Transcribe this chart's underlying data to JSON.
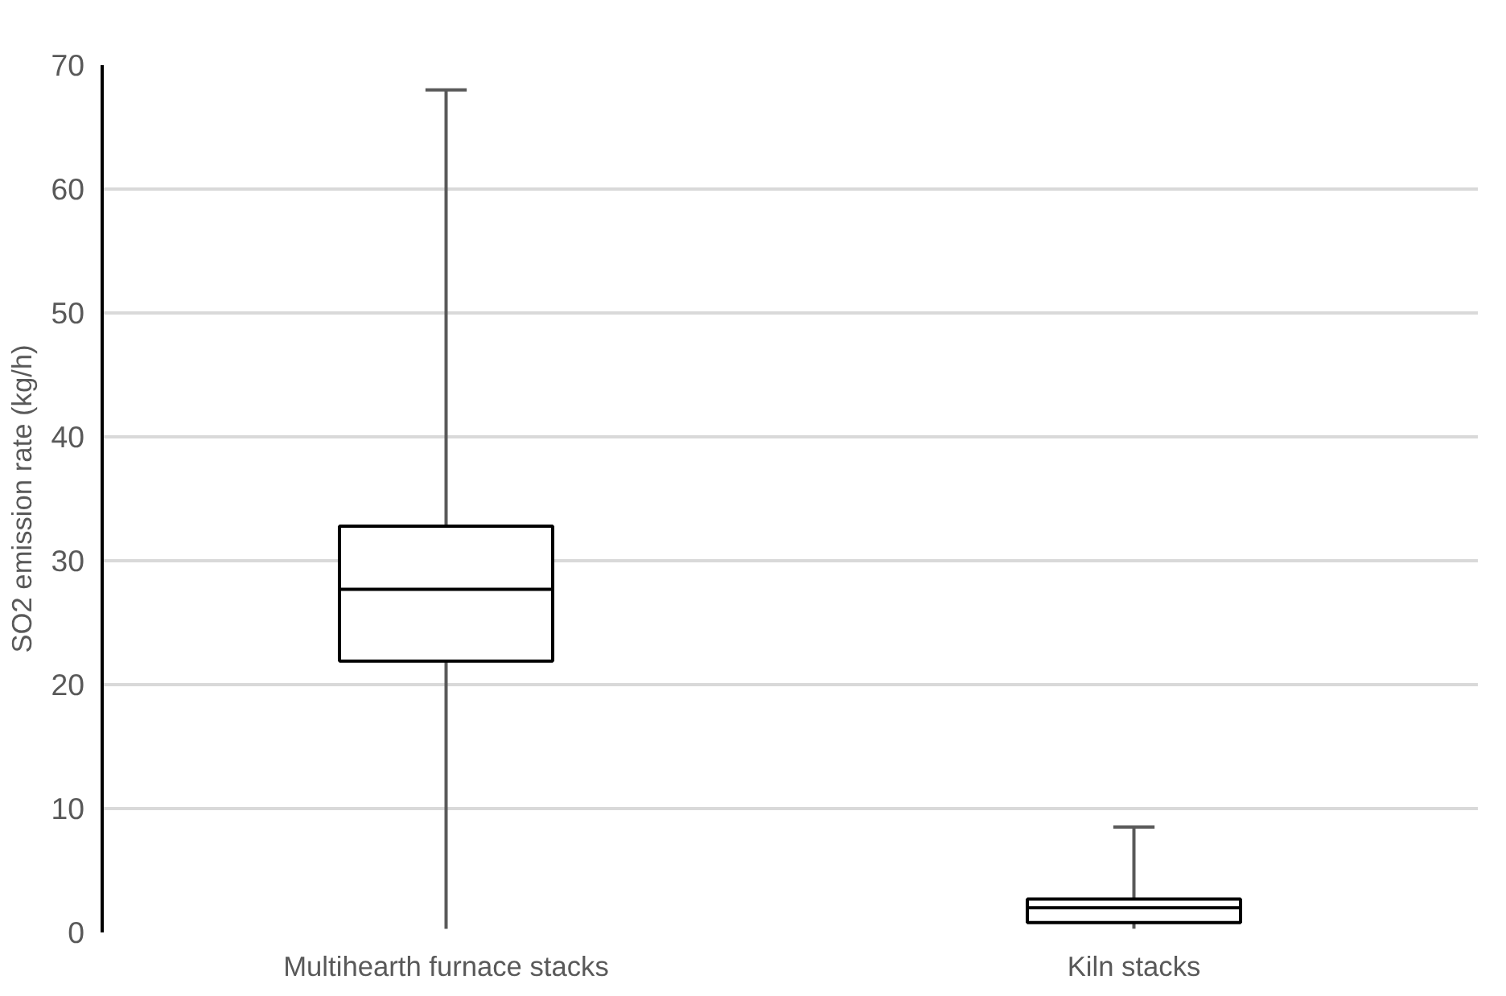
{
  "chart_data": {
    "type": "box",
    "ylabel": "SO2 emission rate (kg/h)",
    "categories": [
      "Multihearth furnace stacks",
      "Kiln stacks"
    ],
    "boxes": [
      {
        "low": 0.3,
        "q1": 21.9,
        "median": 27.7,
        "q3": 32.8,
        "high": 68.0
      },
      {
        "low": 0.3,
        "q1": 0.8,
        "median": 2.0,
        "q3": 2.7,
        "high": 8.5
      }
    ],
    "ylim": [
      0,
      70
    ],
    "yticks": [
      0,
      10,
      20,
      30,
      40,
      50,
      60,
      70
    ],
    "grid": "y"
  }
}
